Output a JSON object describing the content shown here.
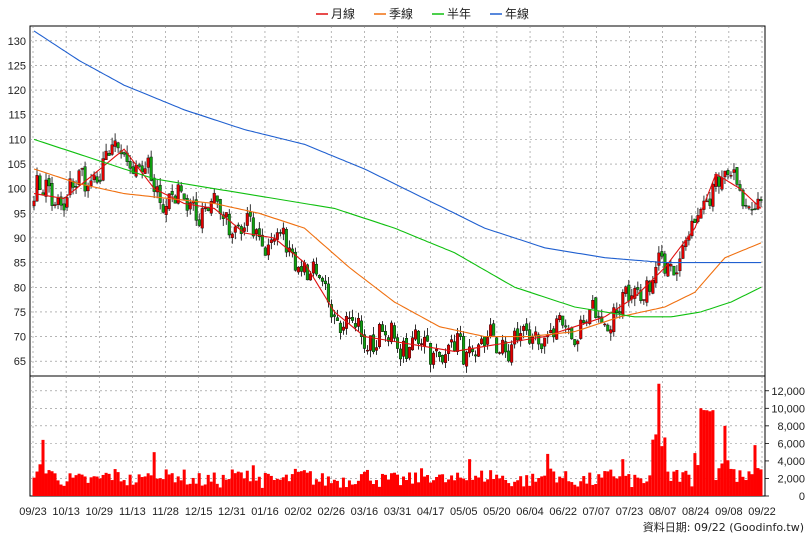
{
  "legend": [
    {
      "label": "月線",
      "color": "#e01010"
    },
    {
      "label": "季線",
      "color": "#f07010"
    },
    {
      "label": "半年",
      "color": "#10c010"
    },
    {
      "label": "年線",
      "color": "#2060d0"
    }
  ],
  "source_text": "資料日期: 09/22  (Goodinfo.tw)",
  "colors": {
    "up": "#e00000",
    "down": "#10a010",
    "volume": "#ff0000",
    "grid": "#888888"
  },
  "chart_data": [
    {
      "type": "line",
      "title": "",
      "ylim": [
        62,
        133
      ],
      "yticks": [
        65,
        70,
        75,
        80,
        85,
        90,
        95,
        100,
        105,
        110,
        115,
        120,
        125,
        130
      ],
      "x_tick_labels": [
        "09/23",
        "10/13",
        "10/29",
        "11/13",
        "11/28",
        "12/15",
        "12/31",
        "01/16",
        "02/02",
        "02/26",
        "03/16",
        "03/31",
        "04/17",
        "05/05",
        "05/20",
        "06/04",
        "06/22",
        "07/07",
        "07/23",
        "08/07",
        "08/24",
        "09/08",
        "09/22"
      ],
      "series": [
        {
          "name": "月線",
          "anchors": [
            [
              0,
              99
            ],
            [
              10,
              98
            ],
            [
              20,
              103
            ],
            [
              30,
              108
            ],
            [
              40,
              100
            ],
            [
              50,
              97
            ],
            [
              60,
              96
            ],
            [
              70,
              91
            ],
            [
              80,
              90
            ],
            [
              90,
              85
            ],
            [
              100,
              75
            ],
            [
              110,
              70
            ],
            [
              120,
              69
            ],
            [
              130,
              68
            ],
            [
              140,
              67
            ],
            [
              150,
              68
            ],
            [
              160,
              69
            ],
            [
              170,
              70
            ],
            [
              180,
              72
            ],
            [
              190,
              74
            ],
            [
              200,
              78
            ],
            [
              210,
              84
            ],
            [
              220,
              92
            ],
            [
              227,
              103
            ],
            [
              235,
              100
            ],
            [
              242,
              96
            ]
          ]
        },
        {
          "name": "季線",
          "anchors": [
            [
              0,
              104
            ],
            [
              15,
              101
            ],
            [
              30,
              99
            ],
            [
              45,
              98
            ],
            [
              60,
              97
            ],
            [
              75,
              95
            ],
            [
              90,
              92
            ],
            [
              105,
              84
            ],
            [
              120,
              77
            ],
            [
              135,
              72
            ],
            [
              150,
              70
            ],
            [
              165,
              70
            ],
            [
              180,
              71
            ],
            [
              195,
              74
            ],
            [
              210,
              76
            ],
            [
              220,
              79
            ],
            [
              230,
              86
            ],
            [
              242,
              89
            ]
          ]
        },
        {
          "name": "半年",
          "anchors": [
            [
              0,
              110
            ],
            [
              20,
              106
            ],
            [
              40,
              102
            ],
            [
              60,
              100
            ],
            [
              80,
              98
            ],
            [
              100,
              96
            ],
            [
              120,
              92
            ],
            [
              140,
              87
            ],
            [
              160,
              80
            ],
            [
              180,
              76
            ],
            [
              200,
              74
            ],
            [
              212,
              74
            ],
            [
              222,
              75
            ],
            [
              232,
              77
            ],
            [
              242,
              80
            ]
          ]
        },
        {
          "name": "年線",
          "anchors": [
            [
              0,
              132
            ],
            [
              15,
              126
            ],
            [
              30,
              121
            ],
            [
              50,
              116
            ],
            [
              70,
              112
            ],
            [
              90,
              109
            ],
            [
              110,
              104
            ],
            [
              130,
              98
            ],
            [
              150,
              92
            ],
            [
              170,
              88
            ],
            [
              190,
              86
            ],
            [
              210,
              85
            ],
            [
              220,
              85
            ],
            [
              242,
              85
            ]
          ]
        }
      ]
    },
    {
      "type": "bar",
      "title": "",
      "ylim": [
        0,
        13000
      ],
      "yticks": [
        0,
        2000,
        4000,
        6000,
        8000,
        10000,
        12000
      ],
      "ytick_labels": [
        "0",
        "2,000",
        "4,000",
        "6,000",
        "8,000",
        "10,000",
        "12,000"
      ],
      "peaks": [
        [
          3,
          6400
        ],
        [
          40,
          5000
        ],
        [
          73,
          3500
        ],
        [
          145,
          4200
        ],
        [
          171,
          4800
        ],
        [
          196,
          4200
        ],
        [
          208,
          12800
        ],
        [
          222,
          10000
        ],
        [
          230,
          8000
        ],
        [
          240,
          5800
        ]
      ]
    }
  ]
}
